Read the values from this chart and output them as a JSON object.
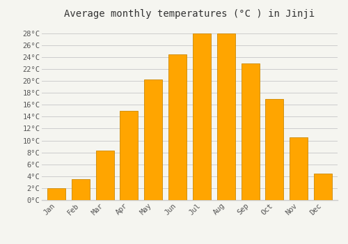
{
  "title": "Average monthly temperatures (°C ) in Jinji",
  "months": [
    "Jan",
    "Feb",
    "Mar",
    "Apr",
    "May",
    "Jun",
    "Jul",
    "Aug",
    "Sep",
    "Oct",
    "Nov",
    "Dec"
  ],
  "values": [
    2,
    3.5,
    8.3,
    15,
    20.2,
    24.5,
    28,
    28,
    23,
    17,
    10.5,
    4.5
  ],
  "bar_color": "#FFA500",
  "bar_edge_color": "#CC8800",
  "background_color": "#F5F5F0",
  "plot_bg_color": "#F5F5F0",
  "grid_color": "#CCCCCC",
  "ylabel_color": "#555555",
  "xlabel_color": "#555555",
  "title_color": "#333333",
  "yticks": [
    0,
    2,
    4,
    6,
    8,
    10,
    12,
    14,
    16,
    18,
    20,
    22,
    24,
    26,
    28
  ],
  "ylim": [
    0,
    29.5
  ],
  "title_fontsize": 10,
  "tick_fontsize": 7.5,
  "font_family": "monospace"
}
